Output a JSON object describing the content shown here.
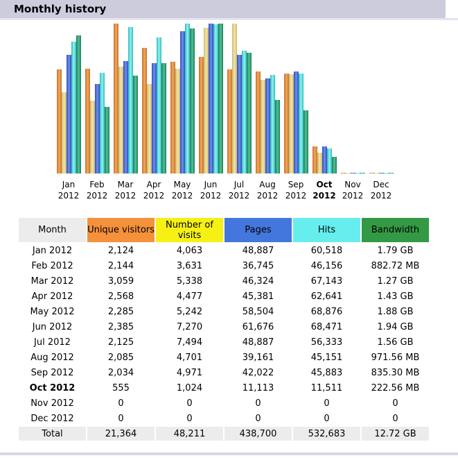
{
  "section_title": "Monthly history",
  "colors": {
    "unique_visitors": "#f4913a",
    "visits": "#f6f014",
    "pages": "#4477dd",
    "hits": "#66eeee",
    "bandwidth": "#339944",
    "header_bg": "#ccccdd"
  },
  "table": {
    "headers": {
      "month": "Month",
      "unique_visitors": "Unique visitors",
      "visits": "Number of visits",
      "pages": "Pages",
      "hits": "Hits",
      "bandwidth": "Bandwidth"
    },
    "rows": [
      {
        "month": "Jan 2012",
        "uv": "2,124",
        "visits": "4,063",
        "pages": "48,887",
        "hits": "60,518",
        "bw": "1.79 GB"
      },
      {
        "month": "Feb 2012",
        "uv": "2,144",
        "visits": "3,631",
        "pages": "36,745",
        "hits": "46,156",
        "bw": "882.72 MB"
      },
      {
        "month": "Mar 2012",
        "uv": "3,059",
        "visits": "5,338",
        "pages": "46,324",
        "hits": "67,143",
        "bw": "1.27 GB"
      },
      {
        "month": "Apr 2012",
        "uv": "2,568",
        "visits": "4,477",
        "pages": "45,381",
        "hits": "62,641",
        "bw": "1.43 GB"
      },
      {
        "month": "May 2012",
        "uv": "2,285",
        "visits": "5,242",
        "pages": "58,504",
        "hits": "68,876",
        "bw": "1.88 GB"
      },
      {
        "month": "Jun 2012",
        "uv": "2,385",
        "visits": "7,270",
        "pages": "61,676",
        "hits": "68,471",
        "bw": "1.94 GB"
      },
      {
        "month": "Jul 2012",
        "uv": "2,125",
        "visits": "7,494",
        "pages": "48,887",
        "hits": "56,333",
        "bw": "1.56 GB"
      },
      {
        "month": "Aug 2012",
        "uv": "2,085",
        "visits": "4,701",
        "pages": "39,161",
        "hits": "45,151",
        "bw": "971.56 MB"
      },
      {
        "month": "Sep 2012",
        "uv": "2,034",
        "visits": "4,971",
        "pages": "42,022",
        "hits": "45,883",
        "bw": "835.30 MB"
      },
      {
        "month": "Oct 2012",
        "uv": "555",
        "visits": "1,024",
        "pages": "11,113",
        "hits": "11,511",
        "bw": "222.56 MB",
        "current": true
      },
      {
        "month": "Nov 2012",
        "uv": "0",
        "visits": "0",
        "pages": "0",
        "hits": "0",
        "bw": "0"
      },
      {
        "month": "Dec 2012",
        "uv": "0",
        "visits": "0",
        "pages": "0",
        "hits": "0",
        "bw": "0"
      }
    ],
    "total": {
      "label": "Total",
      "uv": "21,364",
      "visits": "48,211",
      "pages": "438,700",
      "hits": "532,683",
      "bw": "12.72 GB"
    }
  },
  "chart_data": {
    "type": "bar",
    "categories": [
      "Jan",
      "Feb",
      "Mar",
      "Apr",
      "May",
      "Jun",
      "Jul",
      "Aug",
      "Sep",
      "Oct",
      "Nov",
      "Dec"
    ],
    "category_years": [
      "2012",
      "2012",
      "2012",
      "2012",
      "2012",
      "2012",
      "2012",
      "2012",
      "2012",
      "2012",
      "2012",
      "2012"
    ],
    "current_category": "Oct",
    "scale_note": "each series scaled independently to its own maximum",
    "series": [
      {
        "name": "Unique visitors",
        "color": "#e8953a",
        "values": [
          2124,
          2144,
          3059,
          2568,
          2285,
          2385,
          2125,
          2085,
          2034,
          555,
          0,
          0
        ]
      },
      {
        "name": "Number of visits",
        "color": "#e9d88a",
        "values": [
          4063,
          3631,
          5338,
          4477,
          5242,
          7270,
          7494,
          4701,
          4971,
          1024,
          0,
          0
        ]
      },
      {
        "name": "Pages",
        "color": "#4a6fd8",
        "values": [
          48887,
          36745,
          46324,
          45381,
          58504,
          61676,
          48887,
          39161,
          42022,
          11113,
          0,
          0
        ]
      },
      {
        "name": "Hits",
        "color": "#55dede",
        "values": [
          60518,
          46156,
          67143,
          62641,
          68876,
          68471,
          56333,
          45151,
          45883,
          11511,
          0,
          0
        ]
      },
      {
        "name": "Bandwidth",
        "color": "#2f9a72",
        "values": [
          1.79,
          0.862,
          1.27,
          1.43,
          1.88,
          1.94,
          1.56,
          0.949,
          0.816,
          0.217,
          0,
          0
        ]
      }
    ]
  }
}
